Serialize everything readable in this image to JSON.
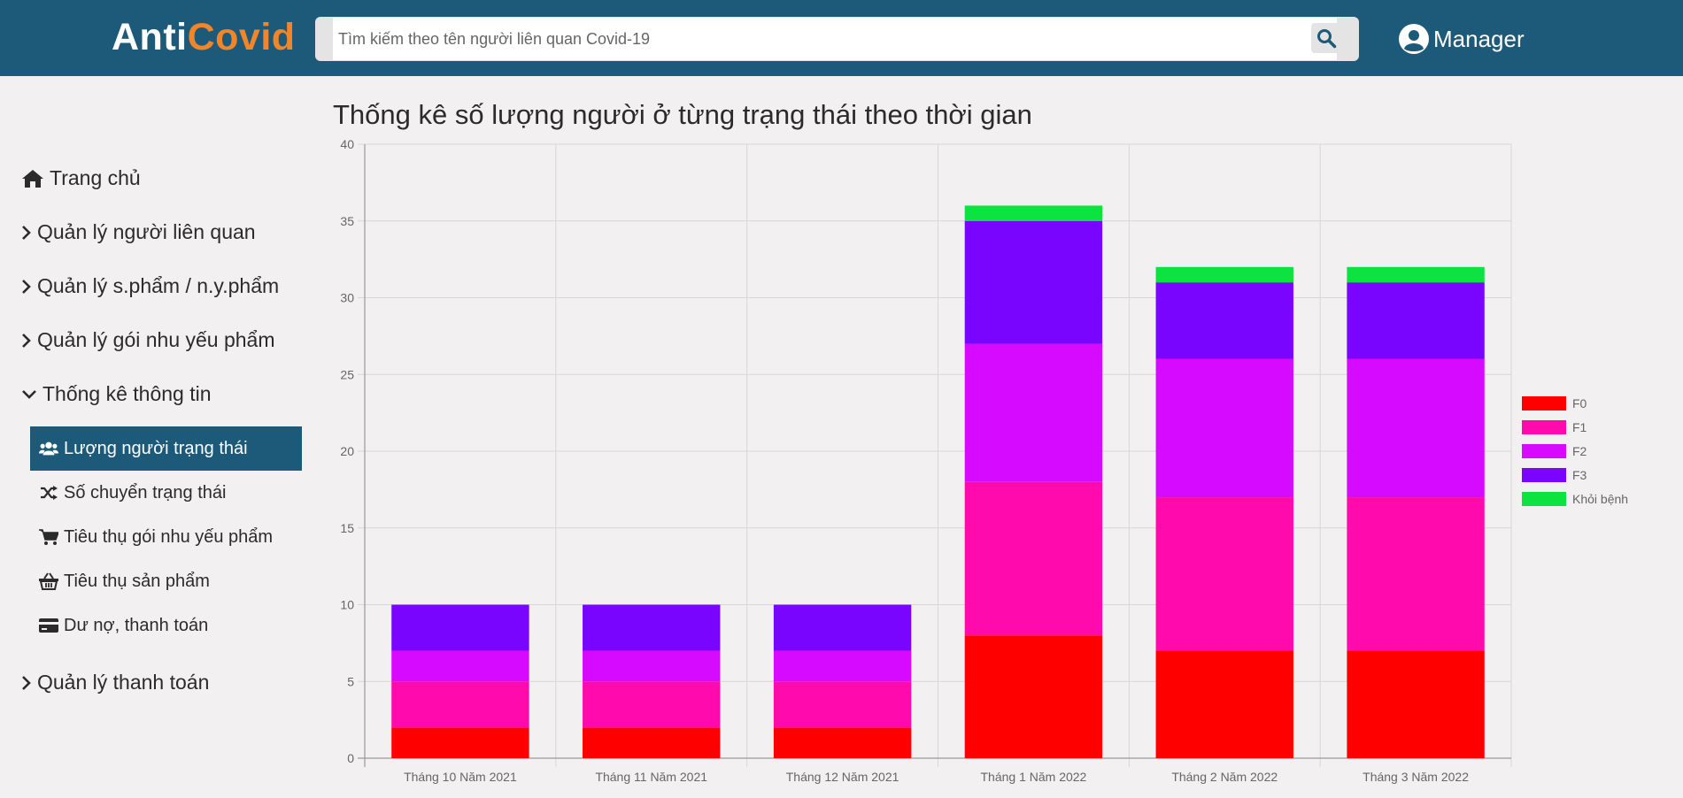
{
  "header": {
    "logo_part1": "Anti",
    "logo_part2": "Covid",
    "search_placeholder": "Tìm kiếm theo tên người liên quan Covid-19",
    "user_label": "Manager"
  },
  "sidebar": {
    "items": [
      {
        "label": "Trang chủ",
        "icon": "home-icon"
      },
      {
        "label": "Quản lý người liên quan",
        "icon": "chevron-right-icon"
      },
      {
        "label": "Quản lý s.phẩm / n.y.phẩm",
        "icon": "chevron-right-icon"
      },
      {
        "label": "Quản lý gói nhu yếu phẩm",
        "icon": "chevron-right-icon"
      },
      {
        "label": "Thống kê thông tin",
        "icon": "chevron-down-icon"
      },
      {
        "label": "Quản lý thanh toán",
        "icon": "chevron-right-icon"
      }
    ],
    "subitems": [
      {
        "label": "Lượng người trạng thái",
        "icon": "users-icon",
        "active": true
      },
      {
        "label": "Số chuyển trạng thái",
        "icon": "shuffle-icon",
        "active": false
      },
      {
        "label": "Tiêu thụ gói nhu yếu phẩm",
        "icon": "cart-icon",
        "active": false
      },
      {
        "label": "Tiêu thụ sản phẩm",
        "icon": "basket-icon",
        "active": false
      },
      {
        "label": "Dư nợ, thanh toán",
        "icon": "credit-card-icon",
        "active": false
      }
    ]
  },
  "colors": {
    "header_bg": "#1d5a7a",
    "logo_accent": "#f0852a",
    "page_bg": "#f2f0f1"
  },
  "chart_data": {
    "type": "bar",
    "stacked": true,
    "title": "Thống kê số lượng người ở từng trạng thái theo thời gian",
    "categories": [
      "Tháng 10 Năm 2021",
      "Tháng 11 Năm 2021",
      "Tháng 12 Năm 2021",
      "Tháng 1 Năm 2022",
      "Tháng 2 Năm 2022",
      "Tháng 3 Năm 2022"
    ],
    "series": [
      {
        "name": "F0",
        "color": "#ff0000",
        "values": [
          2,
          2,
          2,
          8,
          7,
          7
        ]
      },
      {
        "name": "F1",
        "color": "#ff0aad",
        "values": [
          3,
          3,
          3,
          10,
          10,
          10
        ]
      },
      {
        "name": "F2",
        "color": "#d50aff",
        "values": [
          2,
          2,
          2,
          9,
          9,
          9
        ]
      },
      {
        "name": "F3",
        "color": "#7a05ff",
        "values": [
          3,
          3,
          3,
          8,
          5,
          5
        ]
      },
      {
        "name": "Khỏi bệnh",
        "color": "#0de340",
        "values": [
          0,
          0,
          0,
          1,
          1,
          1
        ]
      }
    ],
    "ylim": [
      0,
      40
    ],
    "yticks": [
      0,
      5,
      10,
      15,
      20,
      25,
      30,
      35,
      40
    ],
    "grid": true,
    "legend": "right"
  }
}
